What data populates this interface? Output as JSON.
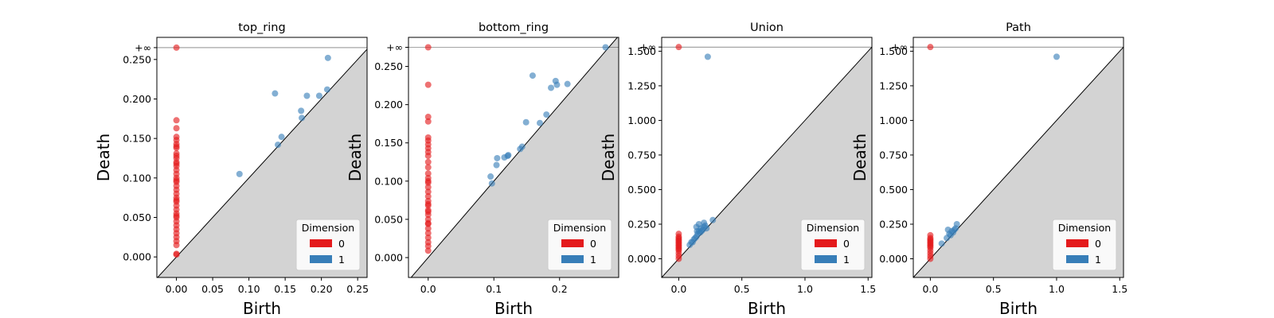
{
  "chart_data": [
    {
      "type": "scatter",
      "title": "top_ring",
      "xlabel": "Birth",
      "ylabel": "Death",
      "xlim": [
        -0.027,
        0.263
      ],
      "ylim": [
        -0.026,
        0.278
      ],
      "inf_value": 0.265,
      "xticks": [
        0.0,
        0.05,
        0.1,
        0.15,
        0.2,
        0.25
      ],
      "xtick_labels": [
        "0.00",
        "0.05",
        "0.10",
        "0.15",
        "0.20",
        "0.25"
      ],
      "yticks": [
        0.0,
        0.05,
        0.1,
        0.15,
        0.2,
        0.25
      ],
      "ytick_labels": [
        "0.000",
        "0.050",
        "0.100",
        "0.150",
        "0.200",
        "0.250"
      ],
      "inf_label": "+∞",
      "legend_title": "Dimension",
      "legend_placement": "bottom-right",
      "series": [
        {
          "name": "0",
          "color": "#e41a1c",
          "x": [
            0,
            0,
            0,
            0,
            0,
            0,
            0,
            0,
            0,
            0,
            0,
            0,
            0,
            0,
            0,
            0,
            0,
            0,
            0,
            0,
            0,
            0,
            0,
            0,
            0,
            0,
            0,
            0,
            0,
            0,
            0,
            0,
            0,
            0,
            0,
            0,
            0,
            0,
            0
          ],
          "y": [
            0.265,
            0.173,
            0.163,
            0.152,
            0.148,
            0.143,
            0.138,
            0.131,
            0.125,
            0.12,
            0.115,
            0.11,
            0.105,
            0.1,
            0.095,
            0.09,
            0.085,
            0.08,
            0.075,
            0.07,
            0.065,
            0.06,
            0.055,
            0.05,
            0.045,
            0.04,
            0.035,
            0.03,
            0.025,
            0.02,
            0.015,
            0.004,
            0.003,
            0.14,
            0.128,
            0.118,
            0.097,
            0.072,
            0.052
          ]
        },
        {
          "name": "1",
          "color": "#377eb8",
          "x": [
            0.087,
            0.136,
            0.14,
            0.145,
            0.172,
            0.173,
            0.18,
            0.197,
            0.208,
            0.209
          ],
          "y": [
            0.105,
            0.207,
            0.142,
            0.152,
            0.185,
            0.176,
            0.204,
            0.204,
            0.212,
            0.252
          ]
        }
      ]
    },
    {
      "type": "scatter",
      "title": "bottom_ring",
      "xlabel": "Birth",
      "ylabel": "Death",
      "xlim": [
        -0.03,
        0.29
      ],
      "ylim": [
        -0.026,
        0.288
      ],
      "inf_value": 0.275,
      "xticks": [
        0.0,
        0.1,
        0.2
      ],
      "xtick_labels": [
        "0.0",
        "0.1",
        "0.2"
      ],
      "yticks": [
        0.0,
        0.05,
        0.1,
        0.15,
        0.2,
        0.25
      ],
      "ytick_labels": [
        "0.000",
        "0.050",
        "0.100",
        "0.150",
        "0.200",
        "0.250"
      ],
      "inf_label": "+∞",
      "legend_title": "Dimension",
      "legend_placement": "bottom-right",
      "series": [
        {
          "name": "0",
          "color": "#e41a1c",
          "x": [
            0,
            0,
            0,
            0,
            0,
            0,
            0,
            0,
            0,
            0,
            0,
            0,
            0,
            0,
            0,
            0,
            0,
            0,
            0,
            0,
            0,
            0,
            0,
            0,
            0,
            0,
            0,
            0,
            0,
            0,
            0,
            0,
            0,
            0
          ],
          "y": [
            0.275,
            0.226,
            0.184,
            0.178,
            0.157,
            0.153,
            0.148,
            0.143,
            0.138,
            0.133,
            0.125,
            0.118,
            0.11,
            0.104,
            0.098,
            0.092,
            0.086,
            0.08,
            0.074,
            0.068,
            0.062,
            0.056,
            0.05,
            0.044,
            0.038,
            0.032,
            0.026,
            0.02,
            0.009,
            0.015,
            0.1,
            0.07,
            0.06,
            0.045
          ]
        },
        {
          "name": "1",
          "color": "#377eb8",
          "x": [
            0.095,
            0.097,
            0.104,
            0.105,
            0.116,
            0.121,
            0.122,
            0.14,
            0.143,
            0.149,
            0.159,
            0.17,
            0.18,
            0.187,
            0.194,
            0.196,
            0.212,
            0.27
          ],
          "y": [
            0.106,
            0.097,
            0.121,
            0.13,
            0.131,
            0.133,
            0.134,
            0.142,
            0.145,
            0.177,
            0.238,
            0.176,
            0.187,
            0.222,
            0.231,
            0.226,
            0.227,
            0.275
          ]
        }
      ]
    },
    {
      "type": "scatter",
      "title": "Union",
      "xlabel": "Birth",
      "ylabel": "Death",
      "xlim": [
        -0.135,
        1.53
      ],
      "ylim": [
        -0.135,
        1.6
      ],
      "inf_value": 1.53,
      "xticks": [
        0.0,
        0.5,
        1.0,
        1.5
      ],
      "xtick_labels": [
        "0.0",
        "0.5",
        "1.0",
        "1.5"
      ],
      "yticks": [
        0.0,
        0.25,
        0.5,
        0.75,
        1.0,
        1.25,
        1.5
      ],
      "ytick_labels": [
        "0.000",
        "0.250",
        "0.500",
        "0.750",
        "1.000",
        "1.250",
        "1.500"
      ],
      "inf_label": "+∞",
      "legend_title": "Dimension",
      "legend_placement": "bottom-right",
      "series": [
        {
          "name": "0",
          "color": "#e41a1c",
          "x": [
            0,
            0,
            0,
            0,
            0,
            0,
            0,
            0,
            0,
            0,
            0,
            0,
            0,
            0,
            0,
            0
          ],
          "y": [
            1.53,
            0.18,
            0.16,
            0.15,
            0.14,
            0.13,
            0.12,
            0.11,
            0.1,
            0.09,
            0.08,
            0.07,
            0.06,
            0.04,
            0.02,
            0.0
          ]
        },
        {
          "name": "1",
          "color": "#377eb8",
          "x": [
            0.087,
            0.1,
            0.11,
            0.12,
            0.13,
            0.14,
            0.145,
            0.15,
            0.16,
            0.17,
            0.175,
            0.18,
            0.19,
            0.2,
            0.21,
            0.22,
            0.14,
            0.16,
            0.2,
            0.27,
            0.23
          ],
          "y": [
            0.1,
            0.12,
            0.12,
            0.14,
            0.15,
            0.16,
            0.2,
            0.18,
            0.2,
            0.19,
            0.22,
            0.2,
            0.21,
            0.23,
            0.24,
            0.22,
            0.23,
            0.25,
            0.26,
            0.28,
            1.46
          ]
        }
      ]
    },
    {
      "type": "scatter",
      "title": "Path",
      "xlabel": "Birth",
      "ylabel": "Death",
      "xlim": [
        -0.135,
        1.53
      ],
      "ylim": [
        -0.135,
        1.6
      ],
      "inf_value": 1.53,
      "xticks": [
        0.0,
        0.5,
        1.0,
        1.5
      ],
      "xtick_labels": [
        "0.0",
        "0.5",
        "1.0",
        "1.5"
      ],
      "yticks": [
        0.0,
        0.25,
        0.5,
        0.75,
        1.0,
        1.25,
        1.5
      ],
      "ytick_labels": [
        "0.000",
        "0.250",
        "0.500",
        "0.750",
        "1.000",
        "1.250",
        "1.500"
      ],
      "inf_label": "+∞",
      "legend_title": "Dimension",
      "legend_placement": "bottom-right",
      "series": [
        {
          "name": "0",
          "color": "#e41a1c",
          "x": [
            0,
            0,
            0,
            0,
            0,
            0,
            0,
            0,
            0,
            0,
            0,
            0,
            0,
            0
          ],
          "y": [
            1.53,
            0.17,
            0.15,
            0.14,
            0.13,
            0.12,
            0.11,
            0.1,
            0.09,
            0.08,
            0.06,
            0.04,
            0.02,
            0.0
          ]
        },
        {
          "name": "1",
          "color": "#377eb8",
          "x": [
            0.09,
            0.13,
            0.14,
            0.16,
            0.17,
            0.18,
            0.19,
            0.2,
            0.21,
            0.15,
            1.0
          ],
          "y": [
            0.11,
            0.15,
            0.21,
            0.17,
            0.2,
            0.19,
            0.21,
            0.22,
            0.25,
            0.18,
            1.46
          ]
        }
      ]
    }
  ]
}
